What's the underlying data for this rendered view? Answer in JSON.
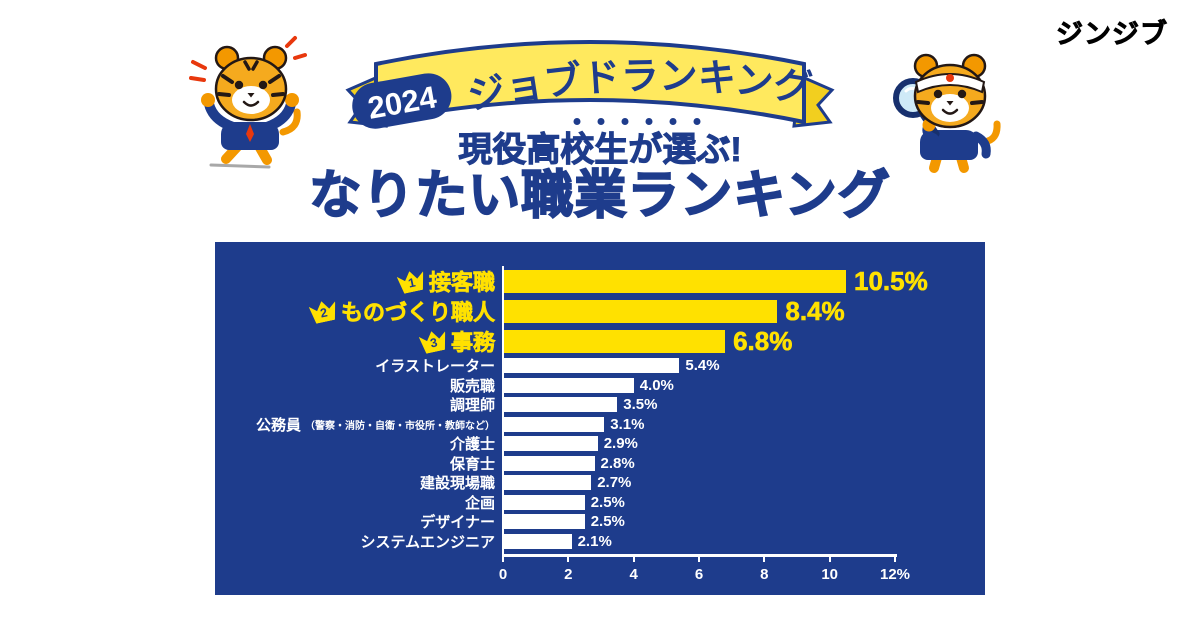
{
  "brand": {
    "logo_text": "ジンジブ"
  },
  "header": {
    "ribbon_year": "2024",
    "ribbon_title": "ジョブドランキング",
    "subtitle": "現役高校生が選ぶ!",
    "title": "なりたい職業ランキング"
  },
  "colors": {
    "primary_blue": "#1e3c8c",
    "accent_yellow": "#ffe100",
    "ribbon_yellow": "#ffe95e",
    "bar_white": "#ffffff",
    "background": "#ffffff"
  },
  "chart_data": {
    "type": "bar",
    "orientation": "horizontal",
    "title": "なりたい職業ランキング",
    "xlabel": "",
    "ylabel": "",
    "xlim": [
      0,
      12
    ],
    "xticks": [
      "0",
      "2",
      "4",
      "6",
      "8",
      "10",
      "12%"
    ],
    "legend": "none",
    "grid": "off",
    "bars": [
      {
        "label": "接客職",
        "value": 10.5,
        "display": "10.5%",
        "rank": 1,
        "highlight": true
      },
      {
        "label": "ものづくり職人",
        "value": 8.4,
        "display": "8.4%",
        "rank": 2,
        "highlight": true
      },
      {
        "label": "事務",
        "value": 6.8,
        "display": "6.8%",
        "rank": 3,
        "highlight": true
      },
      {
        "label": "イラストレーター",
        "value": 5.4,
        "display": "5.4%"
      },
      {
        "label": "販売職",
        "value": 4.0,
        "display": "4.0%"
      },
      {
        "label": "調理師",
        "value": 3.5,
        "display": "3.5%"
      },
      {
        "label": "公務員",
        "note": "（警察・消防・自衛・市役所・教師など）",
        "value": 3.1,
        "display": "3.1%"
      },
      {
        "label": "介護士",
        "value": 2.9,
        "display": "2.9%"
      },
      {
        "label": "保育士",
        "value": 2.8,
        "display": "2.8%"
      },
      {
        "label": "建設現場職",
        "value": 2.7,
        "display": "2.7%"
      },
      {
        "label": "企画",
        "value": 2.5,
        "display": "2.5%"
      },
      {
        "label": "デザイナー",
        "value": 2.5,
        "display": "2.5%"
      },
      {
        "label": "システムエンジニア",
        "value": 2.1,
        "display": "2.1%"
      }
    ]
  }
}
